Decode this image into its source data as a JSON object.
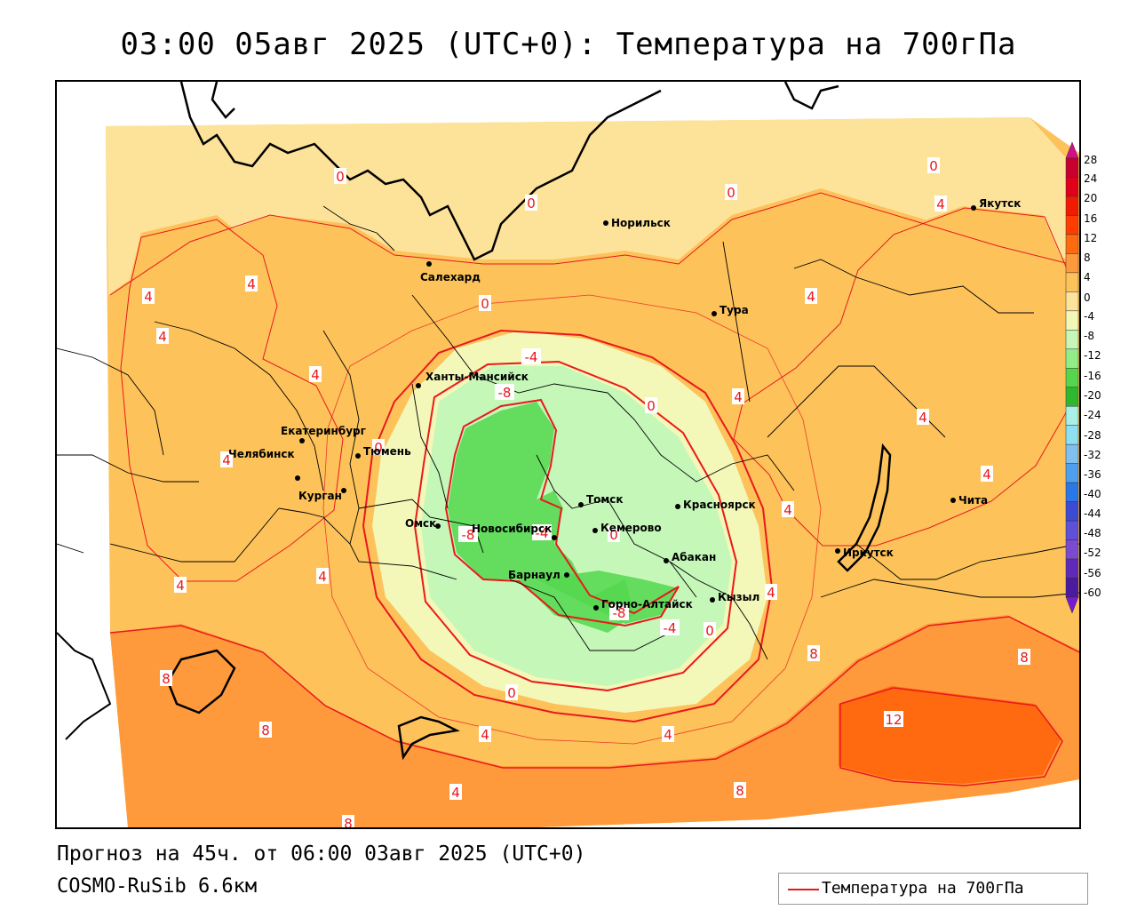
{
  "title": "03:00 05авг 2025 (UTC+0): Температура на 700гПа",
  "forecast_text": "Прогноз на 45ч. от 06:00 03авг 2025 (UTC+0)",
  "model_text": "COSMO-RuSib 6.6км",
  "legend": {
    "label": "Температура на 700гПа",
    "line_color": "#e8191d"
  },
  "colors": {
    "isoline": "#e8191d",
    "coast": "#000000",
    "border": "#000000",
    "no_data": "#ffffff"
  },
  "colorbar": {
    "labels": [
      "28",
      "24",
      "20",
      "16",
      "12",
      "8",
      "4",
      "0",
      "-4",
      "-8",
      "-12",
      "-16",
      "-20",
      "-24",
      "-28",
      "-32",
      "-36",
      "-40",
      "-44",
      "-48",
      "-52",
      "-56",
      "-60"
    ],
    "colors": [
      "#c8002e",
      "#e0001a",
      "#f21a00",
      "#ff3d00",
      "#ff6a10",
      "#ff9a3c",
      "#fdc25a",
      "#fde39a",
      "#f3f7b8",
      "#c4f7b8",
      "#92ec88",
      "#54d74d",
      "#2eb82e",
      "#a8f0e6",
      "#8de0f2",
      "#7fc0f0",
      "#4f9ff0",
      "#2a78e8",
      "#3c4ad6",
      "#5f50d8",
      "#7a4ad0",
      "#5f2ab8",
      "#4a1aa0"
    ],
    "top_arrow_color": "#d0108a",
    "bottom_arrow_color": "#7a1ad0"
  },
  "cities": [
    {
      "name": "Салехард"
    },
    {
      "name": "Норильск"
    },
    {
      "name": "Якутск"
    },
    {
      "name": "Тура"
    },
    {
      "name": "Ханты-Мансийск"
    },
    {
      "name": "Екатеринбург"
    },
    {
      "name": "Тюмень"
    },
    {
      "name": "Челябинск"
    },
    {
      "name": "Курган"
    },
    {
      "name": "Омск"
    },
    {
      "name": "Новосибирск"
    },
    {
      "name": "Томск"
    },
    {
      "name": "Кемерово"
    },
    {
      "name": "Красноярск"
    },
    {
      "name": "Абакан"
    },
    {
      "name": "Барнаул"
    },
    {
      "name": "Горно-Алтайск"
    },
    {
      "name": "Кызыл"
    },
    {
      "name": "Иркутск"
    },
    {
      "name": "Чита"
    }
  ],
  "isoline_labels": [
    "0",
    "0",
    "0",
    "0",
    "0",
    "0",
    "0",
    "0",
    "0",
    "0",
    "4",
    "4",
    "4",
    "4",
    "4",
    "4",
    "4",
    "4",
    "4",
    "4",
    "4",
    "4",
    "4",
    "4",
    "4",
    "4",
    "4",
    "-4",
    "-4",
    "-4",
    "-8",
    "-8",
    "-8",
    "8",
    "8",
    "8",
    "8",
    "8",
    "8",
    "12"
  ]
}
